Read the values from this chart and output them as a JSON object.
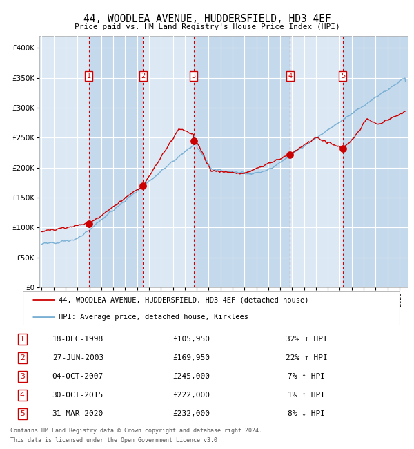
{
  "title": "44, WOODLEA AVENUE, HUDDERSFIELD, HD3 4EF",
  "subtitle": "Price paid vs. HM Land Registry's House Price Index (HPI)",
  "legend_red": "44, WOODLEA AVENUE, HUDDERSFIELD, HD3 4EF (detached house)",
  "legend_blue": "HPI: Average price, detached house, Kirklees",
  "footer1": "Contains HM Land Registry data © Crown copyright and database right 2024.",
  "footer2": "This data is licensed under the Open Government Licence v3.0.",
  "transactions": [
    {
      "num": 1,
      "date": "18-DEC-1998",
      "price": 105950,
      "pct": "32%",
      "dir": "↑"
    },
    {
      "num": 2,
      "date": "27-JUN-2003",
      "price": 169950,
      "pct": "22%",
      "dir": "↑"
    },
    {
      "num": 3,
      "date": "04-OCT-2007",
      "price": 245000,
      "pct": "7%",
      "dir": "↑"
    },
    {
      "num": 4,
      "date": "30-OCT-2015",
      "price": 222000,
      "pct": "1%",
      "dir": "↑"
    },
    {
      "num": 5,
      "date": "31-MAR-2020",
      "price": 232000,
      "pct": "8%",
      "dir": "↓"
    }
  ],
  "tx_x": [
    1998.96,
    2003.49,
    2007.75,
    2015.83,
    2020.25
  ],
  "tx_y": [
    105950,
    169950,
    245000,
    222000,
    232000
  ],
  "ylim": [
    0,
    420000
  ],
  "yticks": [
    0,
    50000,
    100000,
    150000,
    200000,
    250000,
    300000,
    350000,
    400000
  ],
  "ytick_labels": [
    "£0",
    "£50K",
    "£100K",
    "£150K",
    "£200K",
    "£250K",
    "£300K",
    "£350K",
    "£400K"
  ],
  "xlim_start": 1994.8,
  "xlim_end": 2025.7,
  "bg": "#ffffff",
  "plot_bg": "#dce9f5",
  "plot_bg_dark": "#c5d9ed",
  "grid_color": "#ffffff",
  "red_color": "#cc0000",
  "blue_color": "#7ab0d4",
  "band_regions": [
    [
      1995.0,
      1998.96
    ],
    [
      1998.96,
      2003.49
    ],
    [
      2003.49,
      2007.75
    ],
    [
      2007.75,
      2015.83
    ],
    [
      2015.83,
      2020.25
    ],
    [
      2020.25,
      2025.7
    ]
  ],
  "band_dark": [
    false,
    true,
    false,
    true,
    false,
    true
  ]
}
